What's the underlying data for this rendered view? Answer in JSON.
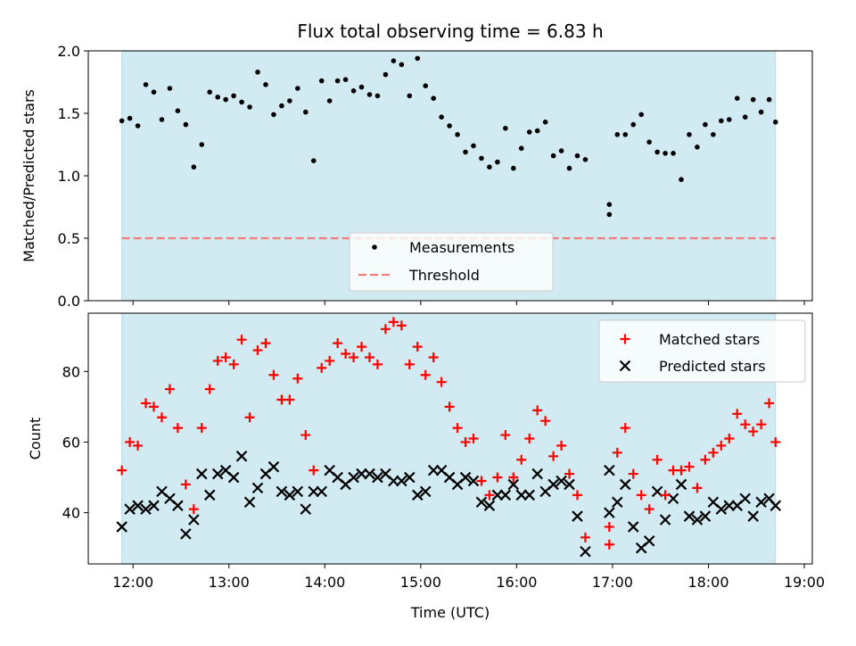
{
  "title": "Flux total observing time = 6.83 h",
  "colors": {
    "shade": "#add8e6",
    "measurement": "#000000",
    "threshold": "#f08080",
    "matched": "#ff0000",
    "predicted": "#000000"
  },
  "chart_data": [
    {
      "type": "scatter",
      "title": "Flux total observing time = 6.83 h",
      "ylabel": "Matched/Predicted stars",
      "xlim": [
        "11:32",
        "19:05"
      ],
      "ylim": [
        0,
        2.0
      ],
      "yticks": [
        "0.0",
        "0.5",
        "1.0",
        "1.5",
        "2.0"
      ],
      "shaded_span": [
        "11:53",
        "18:42"
      ],
      "legend": {
        "position": "lower-center",
        "entries": [
          "Measurements",
          "Threshold"
        ]
      },
      "threshold": {
        "name": "Threshold",
        "value": 0.5
      },
      "series": [
        {
          "name": "Measurements",
          "x": [
            "11:53",
            "11:58",
            "12:03",
            "12:08",
            "12:13",
            "12:18",
            "12:23",
            "12:28",
            "12:33",
            "12:38",
            "12:43",
            "12:48",
            "12:53",
            "12:58",
            "13:03",
            "13:08",
            "13:13",
            "13:18",
            "13:23",
            "13:28",
            "13:33",
            "13:38",
            "13:43",
            "13:48",
            "13:53",
            "13:58",
            "14:03",
            "14:08",
            "14:13",
            "14:18",
            "14:23",
            "14:28",
            "14:33",
            "14:38",
            "14:43",
            "14:48",
            "14:53",
            "14:58",
            "15:03",
            "15:08",
            "15:13",
            "15:18",
            "15:23",
            "15:28",
            "15:33",
            "15:38",
            "15:43",
            "15:48",
            "15:53",
            "15:58",
            "16:03",
            "16:08",
            "16:13",
            "16:18",
            "16:23",
            "16:28",
            "16:33",
            "16:38",
            "16:43",
            "16:48",
            "16:58",
            "16:58",
            "17:03",
            "17:08",
            "17:13",
            "17:18",
            "17:23",
            "17:28",
            "17:33",
            "17:38",
            "17:43",
            "17:48",
            "17:53",
            "17:58",
            "18:03",
            "18:08",
            "18:13",
            "18:18",
            "18:23",
            "18:28",
            "18:33",
            "18:38",
            "18:42"
          ],
          "y": [
            1.44,
            1.46,
            1.4,
            1.73,
            1.67,
            1.45,
            1.7,
            1.52,
            1.41,
            1.07,
            1.25,
            1.67,
            1.63,
            1.61,
            1.64,
            1.59,
            1.55,
            1.83,
            1.73,
            1.49,
            1.56,
            1.6,
            1.7,
            1.51,
            1.12,
            1.76,
            1.6,
            1.76,
            1.77,
            1.68,
            1.71,
            1.65,
            1.64,
            1.81,
            1.92,
            1.89,
            1.64,
            1.94,
            1.72,
            1.62,
            1.47,
            1.4,
            1.33,
            1.19,
            1.24,
            1.14,
            1.07,
            1.11,
            1.38,
            1.06,
            1.22,
            1.35,
            1.36,
            1.43,
            1.16,
            1.2,
            1.06,
            1.16,
            1.13,
            null,
            0.69,
            0.77,
            1.33,
            1.33,
            1.41,
            1.49,
            1.27,
            1.19,
            1.18,
            1.18,
            0.97,
            1.33,
            1.23,
            1.41,
            1.33,
            1.44,
            1.45,
            1.62,
            1.47,
            1.61,
            1.51,
            1.61,
            1.43
          ]
        }
      ]
    },
    {
      "type": "scatter",
      "xlabel": "Time (UTC)",
      "ylabel": "Count",
      "xlim": [
        "11:32",
        "19:05"
      ],
      "xticks": [
        "12:00",
        "13:00",
        "14:00",
        "15:00",
        "16:00",
        "17:00",
        "18:00",
        "19:00"
      ],
      "ylim": [
        25.5,
        96.5
      ],
      "yticks": [
        "40",
        "60",
        "80"
      ],
      "shaded_span": [
        "11:53",
        "18:42"
      ],
      "legend": {
        "position": "upper-right",
        "entries": [
          "Matched stars",
          "Predicted stars"
        ]
      },
      "series": [
        {
          "name": "Matched stars",
          "marker": "plus",
          "x": [
            "11:53",
            "11:58",
            "12:03",
            "12:08",
            "12:13",
            "12:18",
            "12:23",
            "12:28",
            "12:33",
            "12:38",
            "12:43",
            "12:48",
            "12:53",
            "12:58",
            "13:03",
            "13:08",
            "13:13",
            "13:18",
            "13:23",
            "13:28",
            "13:33",
            "13:38",
            "13:43",
            "13:48",
            "13:53",
            "13:58",
            "14:03",
            "14:08",
            "14:13",
            "14:18",
            "14:23",
            "14:28",
            "14:33",
            "14:38",
            "14:43",
            "14:48",
            "14:53",
            "14:58",
            "15:03",
            "15:08",
            "15:13",
            "15:18",
            "15:23",
            "15:28",
            "15:33",
            "15:38",
            "15:43",
            "15:48",
            "15:53",
            "15:58",
            "16:03",
            "16:08",
            "16:13",
            "16:18",
            "16:23",
            "16:28",
            "16:33",
            "16:38",
            "16:43",
            "16:48",
            "16:58",
            "16:58",
            "17:03",
            "17:08",
            "17:13",
            "17:18",
            "17:23",
            "17:28",
            "17:33",
            "17:38",
            "17:43",
            "17:48",
            "17:53",
            "17:58",
            "18:03",
            "18:08",
            "18:13",
            "18:18",
            "18:23",
            "18:28",
            "18:33",
            "18:38",
            "18:42"
          ],
          "y": [
            52,
            60,
            59,
            71,
            70,
            67,
            75,
            64,
            48,
            41,
            64,
            75,
            83,
            84,
            82,
            89,
            67,
            86,
            88,
            79,
            72,
            72,
            78,
            62,
            52,
            81,
            83,
            88,
            85,
            84,
            87,
            84,
            82,
            92,
            94,
            93,
            82,
            87,
            79,
            84,
            77,
            70,
            64,
            60,
            61,
            49,
            45,
            50,
            62,
            50,
            55,
            61,
            69,
            66,
            56,
            59,
            51,
            45,
            33,
            null,
            31,
            36,
            57,
            64,
            51,
            45,
            41,
            55,
            45,
            52,
            52,
            53,
            47,
            55,
            57,
            59,
            61,
            68,
            65,
            63,
            65,
            71,
            60
          ]
        },
        {
          "name": "Predicted stars",
          "marker": "x",
          "x": [
            "11:53",
            "11:58",
            "12:03",
            "12:08",
            "12:13",
            "12:18",
            "12:23",
            "12:28",
            "12:33",
            "12:38",
            "12:43",
            "12:48",
            "12:53",
            "12:58",
            "13:03",
            "13:08",
            "13:13",
            "13:18",
            "13:23",
            "13:28",
            "13:33",
            "13:38",
            "13:43",
            "13:48",
            "13:53",
            "13:58",
            "14:03",
            "14:08",
            "14:13",
            "14:18",
            "14:23",
            "14:28",
            "14:33",
            "14:38",
            "14:43",
            "14:48",
            "14:53",
            "14:58",
            "15:03",
            "15:08",
            "15:13",
            "15:18",
            "15:23",
            "15:28",
            "15:33",
            "15:38",
            "15:43",
            "15:48",
            "15:53",
            "15:58",
            "16:03",
            "16:08",
            "16:13",
            "16:18",
            "16:23",
            "16:28",
            "16:33",
            "16:38",
            "16:43",
            "16:48",
            "16:58",
            "16:58",
            "17:03",
            "17:08",
            "17:13",
            "17:18",
            "17:23",
            "17:28",
            "17:33",
            "17:38",
            "17:43",
            "17:48",
            "17:53",
            "17:58",
            "18:03",
            "18:08",
            "18:13",
            "18:18",
            "18:23",
            "18:28",
            "18:33",
            "18:38",
            "18:42"
          ],
          "y": [
            36,
            41,
            42,
            41,
            42,
            46,
            44,
            42,
            34,
            38,
            51,
            45,
            51,
            52,
            50,
            56,
            43,
            47,
            51,
            53,
            46,
            45,
            46,
            41,
            46,
            46,
            52,
            50,
            48,
            50,
            51,
            51,
            50,
            51,
            49,
            49,
            50,
            45,
            46,
            52,
            52,
            50,
            48,
            50,
            49,
            43,
            42,
            45,
            45,
            48,
            45,
            45,
            51,
            46,
            48,
            49,
            48,
            39,
            29,
            null,
            40,
            52,
            43,
            48,
            36,
            30,
            32,
            46,
            38,
            44,
            48,
            39,
            38,
            39,
            43,
            41,
            42,
            42,
            44,
            39,
            43,
            44,
            42
          ]
        }
      ]
    }
  ]
}
